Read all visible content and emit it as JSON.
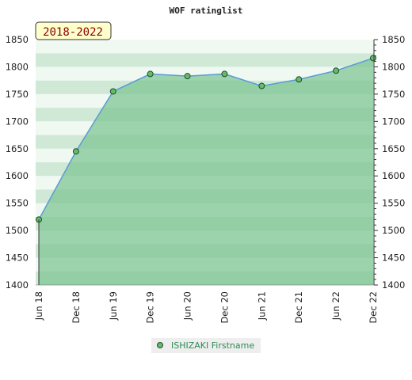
{
  "chart_data": {
    "type": "area",
    "title": "WOF ratinglist",
    "period_label": "2018-2022",
    "x": [
      "Jun 18",
      "Dec 18",
      "Jun 19",
      "Dec 19",
      "Jun 20",
      "Dec 20",
      "Jun 21",
      "Dec 21",
      "Jun 22",
      "Dec 22"
    ],
    "series": [
      {
        "name": "ISHIZAKI Firstname",
        "values": [
          1520,
          1645,
          1755,
          1787,
          1783,
          1787,
          1765,
          1777,
          1793,
          1816
        ]
      }
    ],
    "ylim": [
      1400,
      1850
    ],
    "yticks": [
      1400,
      1450,
      1500,
      1550,
      1600,
      1650,
      1700,
      1750,
      1800,
      1850
    ],
    "grid": true,
    "legend_position": "bottom-center",
    "colors": {
      "line": "#5b9bd5",
      "area": "#7cc490",
      "marker": "#66bb6a",
      "band_light": "#f0f8f2",
      "band_dark": "#cfe9d6",
      "period_bg": "#ffffcc"
    }
  }
}
